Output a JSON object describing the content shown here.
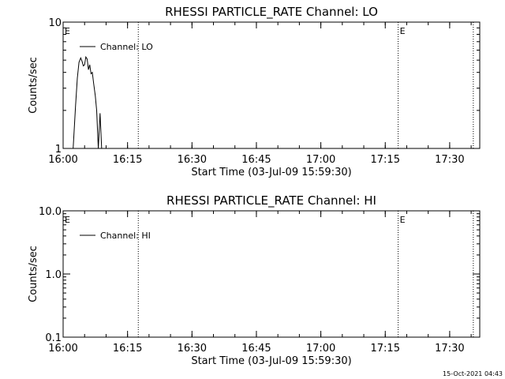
{
  "chart_data": [
    {
      "type": "line",
      "title": "RHESSI PARTICLE_RATE Channel: LO",
      "xlabel": "Start Time (03-Jul-09 15:59:30)",
      "ylabel": "Counts/sec",
      "xlim": [
        "16:00",
        "17:37"
      ],
      "ylim": [
        1,
        10
      ],
      "yscale": "log",
      "x_ticks": [
        "16:00",
        "16:15",
        "16:30",
        "16:45",
        "17:00",
        "17:15",
        "17:30"
      ],
      "y_ticks": [
        "1",
        "10"
      ],
      "legend": {
        "label": "Channel: LO",
        "position": "top-left"
      },
      "markers": [
        {
          "time": "16:17.5",
          "label": ""
        },
        {
          "time": "17:18",
          "label": "E"
        },
        {
          "time": "17:35.5",
          "label": ""
        }
      ],
      "start_marker_label": "E",
      "series": [
        {
          "name": "Channel: LO",
          "x": [
            "16:02.3",
            "16:02.9",
            "16:03.3",
            "16:03.7",
            "16:04.1",
            "16:04.4",
            "16:04.7",
            "16:05.0",
            "16:05.3",
            "16:05.6",
            "16:05.9",
            "16:06.2",
            "16:06.5",
            "16:06.8",
            "16:07.1",
            "16:07.5",
            "16:07.8",
            "16:08.2",
            "16:08.6",
            "16:09.0"
          ],
          "values": [
            0.95,
            2.2,
            3.6,
            4.8,
            5.2,
            4.9,
            4.5,
            4.6,
            5.3,
            5.1,
            4.2,
            4.6,
            3.9,
            4.0,
            3.3,
            2.6,
            2.0,
            1.0,
            1.9,
            0.95
          ]
        }
      ]
    },
    {
      "type": "line",
      "title": "RHESSI PARTICLE_RATE Channel: HI",
      "xlabel": "Start Time (03-Jul-09 15:59:30)",
      "ylabel": "Counts/sec",
      "xlim": [
        "16:00",
        "17:37"
      ],
      "ylim": [
        0.1,
        10
      ],
      "yscale": "log",
      "x_ticks": [
        "16:00",
        "16:15",
        "16:30",
        "16:45",
        "17:00",
        "17:15",
        "17:30"
      ],
      "y_ticks": [
        "0.1",
        "1.0",
        "10.0"
      ],
      "legend": {
        "label": "Channel: HI",
        "position": "top-left"
      },
      "markers": [
        {
          "time": "16:17.5",
          "label": ""
        },
        {
          "time": "17:18",
          "label": "E"
        },
        {
          "time": "17:35.5",
          "label": ""
        }
      ],
      "start_marker_label": "E",
      "series": [
        {
          "name": "Channel: HI",
          "x": [],
          "values": []
        }
      ]
    }
  ],
  "footer": {
    "timestamp": "15-Oct-2021 04:43"
  }
}
